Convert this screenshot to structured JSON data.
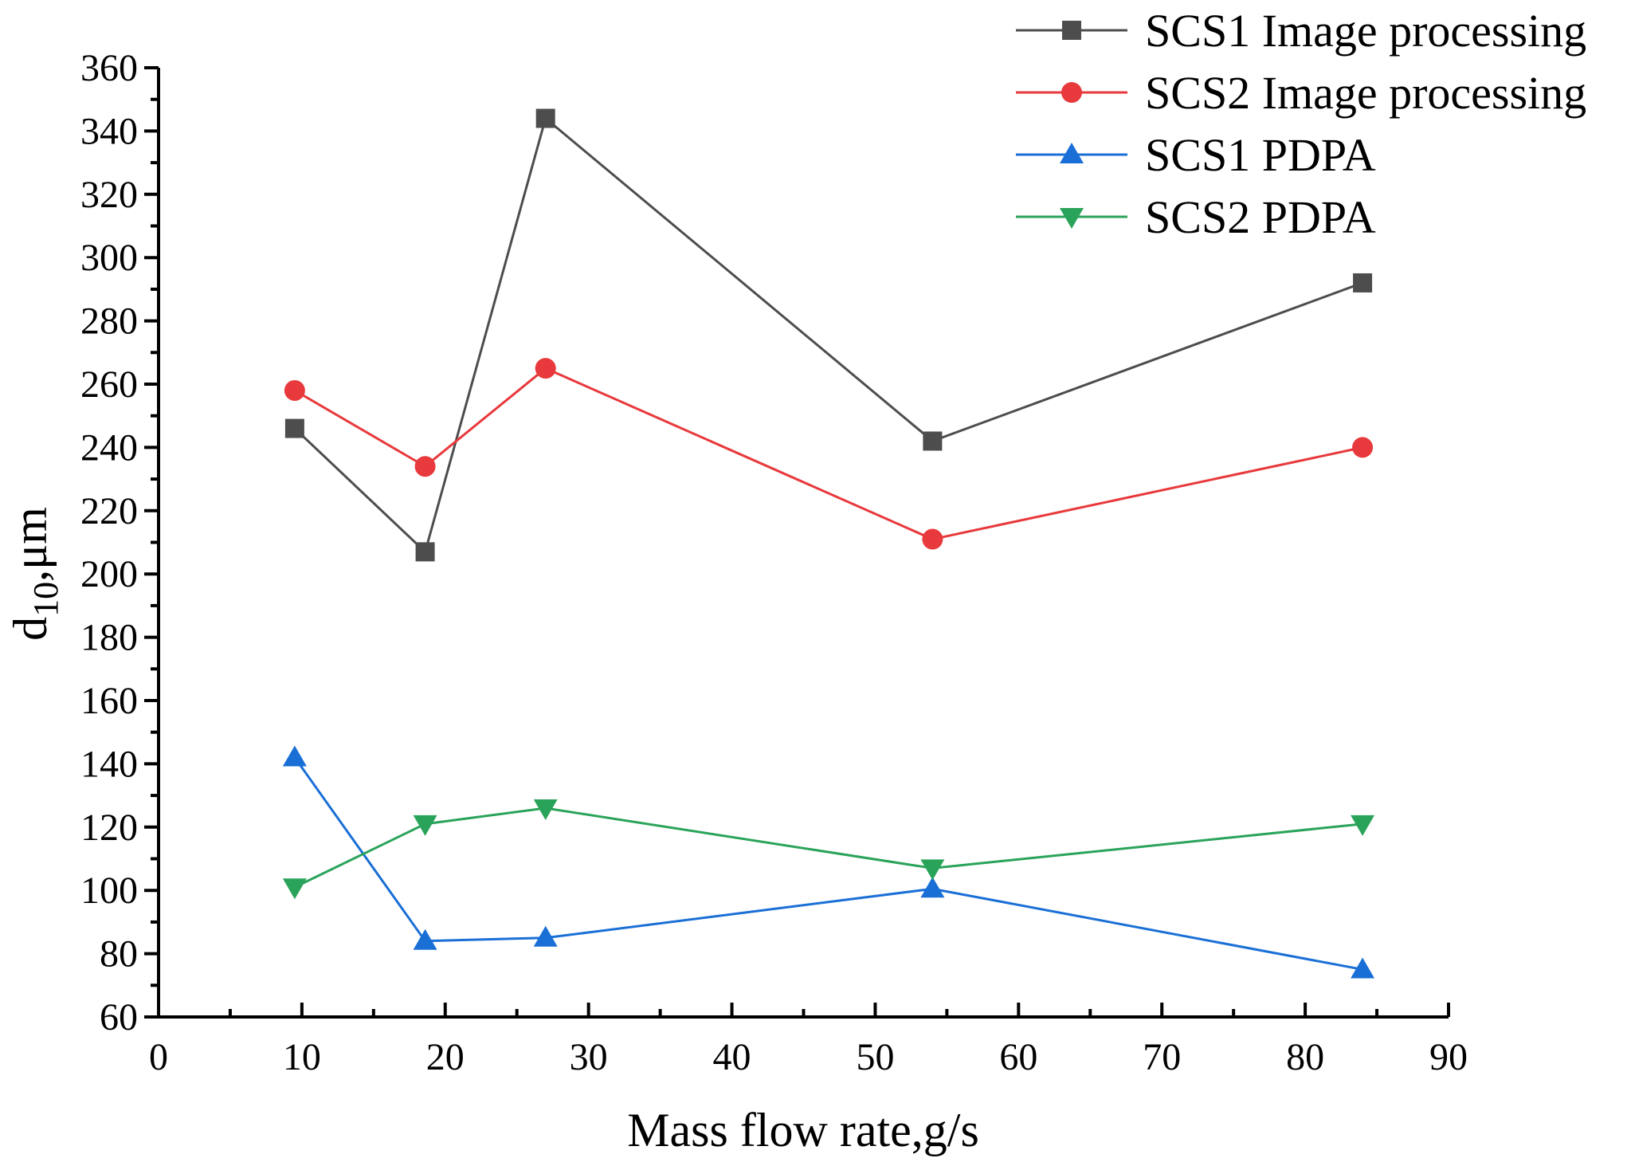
{
  "chart_data": {
    "type": "line",
    "title": "",
    "xlabel": "Mass flow rate,g/s",
    "ylabel_main": "d",
    "ylabel_sub": "10",
    "ylabel_unit": ",μm",
    "xlim": [
      0,
      90
    ],
    "ylim": [
      60,
      360
    ],
    "x_ticks": [
      "0",
      "10",
      "20",
      "30",
      "40",
      "50",
      "60",
      "70",
      "80",
      "90"
    ],
    "y_ticks": [
      "60",
      "80",
      "100",
      "120",
      "140",
      "160",
      "180",
      "200",
      "220",
      "240",
      "260",
      "280",
      "300",
      "320",
      "340",
      "360"
    ],
    "grid": false,
    "legend_position": "top-right",
    "series": [
      {
        "name": "SCS1 Image processing",
        "color": "#4d4d4d",
        "marker": "square",
        "x": [
          9.5,
          18.6,
          27.0,
          54.0,
          84.0
        ],
        "values": [
          246,
          207,
          344,
          242,
          292
        ]
      },
      {
        "name": "SCS2 Image processing",
        "color": "#e8393c",
        "marker": "circle",
        "x": [
          9.5,
          18.6,
          27.0,
          54.0,
          84.0
        ],
        "values": [
          258,
          234,
          265,
          211,
          240
        ]
      },
      {
        "name": "SCS1 PDPA",
        "color": "#1a6fd6",
        "marker": "triangle-up",
        "x": [
          9.5,
          18.6,
          27.0,
          54.0,
          84.0
        ],
        "values": [
          142,
          84,
          85,
          100.5,
          75
        ]
      },
      {
        "name": "SCS2 PDPA",
        "color": "#2aa35a",
        "marker": "triangle-down",
        "x": [
          9.5,
          18.6,
          27.0,
          54.0,
          84.0
        ],
        "values": [
          101,
          121,
          126,
          107,
          121
        ]
      }
    ]
  }
}
